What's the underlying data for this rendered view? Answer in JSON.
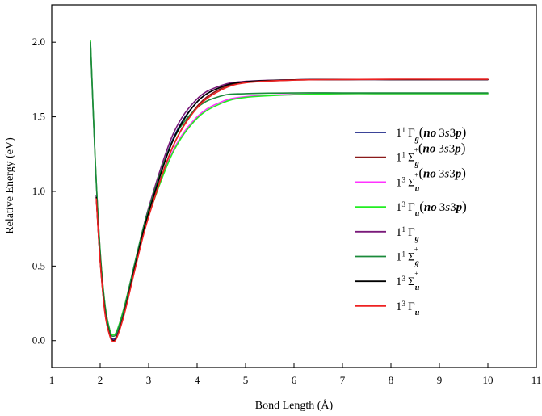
{
  "chart_data": {
    "type": "line",
    "title": "",
    "xlabel": "Bond Length (Å)",
    "ylabel": "Relative Energy (eV)",
    "xlim": [
      1,
      11
    ],
    "ylim": [
      -0.18,
      2.25
    ],
    "xticks": [
      1,
      2,
      3,
      4,
      5,
      6,
      7,
      8,
      9,
      10,
      11
    ],
    "xtick_labels": [
      "1",
      "2",
      "3",
      "4",
      "5",
      "6",
      "7",
      "8",
      "9",
      "10",
      "11"
    ],
    "yticks": [
      0.0,
      0.5,
      1.0,
      1.5,
      2.0
    ],
    "ytick_labels": [
      "0.0",
      "0.5",
      "1.0",
      "1.5",
      "2.0"
    ],
    "grid": false,
    "legend_position": "right",
    "series": [
      {
        "name": "1¹Γg(no 3s3p)",
        "label_base": "1",
        "label_mult": "1",
        "label_sym": "Γ",
        "label_sub": "g",
        "label_sup": "",
        "label_suffix": "(no 3s3p)",
        "color": "#1f2a8a",
        "x": [
          1.92,
          2.0,
          2.1,
          2.2,
          2.27,
          2.35,
          2.5,
          2.75,
          3.0,
          3.5,
          4.0,
          4.5,
          5.0,
          6.0,
          7.0,
          8.0,
          9.0,
          10.0
        ],
        "y": [
          0.97,
          0.55,
          0.2,
          0.045,
          0.01,
          0.04,
          0.2,
          0.55,
          0.87,
          1.35,
          1.6,
          1.7,
          1.735,
          1.748,
          1.75,
          1.75,
          1.75,
          1.75
        ]
      },
      {
        "name": "1¹Σg⁺(no 3s3p)",
        "label_base": "1",
        "label_mult": "1",
        "label_sym": "Σ",
        "label_sub": "g",
        "label_sup": "+",
        "label_suffix": "(no 3s3p)",
        "color": "#8b1a1a",
        "x": [
          1.92,
          2.0,
          2.1,
          2.2,
          2.27,
          2.35,
          2.5,
          2.75,
          3.0,
          3.5,
          4.0,
          4.5,
          5.0,
          6.0,
          7.0,
          8.0,
          9.0,
          10.0
        ],
        "y": [
          0.96,
          0.54,
          0.19,
          0.035,
          0.0,
          0.03,
          0.19,
          0.53,
          0.84,
          1.3,
          1.57,
          1.69,
          1.73,
          1.746,
          1.75,
          1.75,
          1.75,
          1.75
        ]
      },
      {
        "name": "1³Σu⁺(no 3s3p)",
        "label_base": "1",
        "label_mult": "3",
        "label_sym": "Σ",
        "label_sub": "u",
        "label_sup": "+",
        "label_suffix": "(no 3s3p)",
        "color": "#ff33ff",
        "x": [
          1.8,
          1.9,
          2.0,
          2.1,
          2.2,
          2.27,
          2.35,
          2.5,
          2.75,
          3.0,
          3.5,
          4.0,
          4.5,
          5.0,
          6.0,
          7.0,
          8.0,
          9.0,
          10.0
        ],
        "y": [
          2.0,
          1.2,
          0.6,
          0.24,
          0.07,
          0.04,
          0.07,
          0.23,
          0.56,
          0.84,
          1.27,
          1.5,
          1.6,
          1.635,
          1.65,
          1.655,
          1.655,
          1.655,
          1.655
        ]
      },
      {
        "name": "1³Γu(no 3s3p)",
        "label_base": "1",
        "label_mult": "3",
        "label_sym": "Γ",
        "label_sub": "u",
        "label_sup": "",
        "label_suffix": "(no 3s3p)",
        "color": "#22ee22",
        "x": [
          1.8,
          1.9,
          2.0,
          2.1,
          2.2,
          2.27,
          2.35,
          2.5,
          2.75,
          3.0,
          3.5,
          4.0,
          4.5,
          5.0,
          6.0,
          7.0,
          8.0,
          9.0,
          10.0
        ],
        "y": [
          2.01,
          1.2,
          0.6,
          0.24,
          0.07,
          0.04,
          0.07,
          0.23,
          0.56,
          0.84,
          1.26,
          1.49,
          1.59,
          1.63,
          1.648,
          1.655,
          1.655,
          1.655,
          1.655
        ]
      },
      {
        "name": "1¹Γg",
        "label_base": "1",
        "label_mult": "1",
        "label_sym": "Γ",
        "label_sub": "g",
        "label_sup": "",
        "label_suffix": "",
        "color": "#7a1a7a",
        "x": [
          1.92,
          2.0,
          2.1,
          2.2,
          2.27,
          2.35,
          2.5,
          2.75,
          3.0,
          3.5,
          4.0,
          4.5,
          5.0,
          6.0,
          7.0,
          8.0,
          9.0,
          10.0
        ],
        "y": [
          0.97,
          0.55,
          0.2,
          0.04,
          0.005,
          0.035,
          0.2,
          0.56,
          0.89,
          1.38,
          1.62,
          1.71,
          1.738,
          1.748,
          1.75,
          1.75,
          1.75,
          1.75
        ]
      },
      {
        "name": "1¹Σg⁺",
        "label_base": "1",
        "label_mult": "1",
        "label_sym": "Σ",
        "label_sub": "g",
        "label_sup": "+",
        "label_suffix": "",
        "color": "#1a8a3a",
        "x": [
          1.8,
          1.9,
          2.0,
          2.1,
          2.2,
          2.27,
          2.35,
          2.5,
          2.75,
          3.0,
          3.5,
          4.0,
          4.5,
          5.0,
          6.0,
          7.0,
          8.0,
          9.0,
          10.0
        ],
        "y": [
          2.0,
          1.19,
          0.59,
          0.23,
          0.06,
          0.03,
          0.06,
          0.22,
          0.57,
          0.88,
          1.34,
          1.56,
          1.64,
          1.655,
          1.66,
          1.66,
          1.66,
          1.66,
          1.66
        ]
      },
      {
        "name": "1³Σu⁺",
        "label_base": "1",
        "label_mult": "3",
        "label_sym": "Σ",
        "label_sub": "u",
        "label_sup": "+",
        "label_suffix": "",
        "color": "#000000",
        "x": [
          1.92,
          2.0,
          2.1,
          2.2,
          2.27,
          2.35,
          2.5,
          2.75,
          3.0,
          3.5,
          4.0,
          4.5,
          5.0,
          6.0,
          7.0,
          8.0,
          9.0,
          10.0
        ],
        "y": [
          0.96,
          0.54,
          0.19,
          0.035,
          0.0,
          0.03,
          0.19,
          0.54,
          0.86,
          1.34,
          1.6,
          1.7,
          1.735,
          1.748,
          1.75,
          1.75,
          1.75,
          1.75
        ]
      },
      {
        "name": "1³Γu",
        "label_base": "1",
        "label_mult": "3",
        "label_sym": "Γ",
        "label_sub": "u",
        "label_sup": "",
        "label_suffix": "",
        "color": "#ee2222",
        "x": [
          1.92,
          2.0,
          2.1,
          2.2,
          2.27,
          2.35,
          2.5,
          2.75,
          3.0,
          3.5,
          4.0,
          4.5,
          5.0,
          6.0,
          7.0,
          8.0,
          9.0,
          10.0
        ],
        "y": [
          0.95,
          0.53,
          0.18,
          0.03,
          -0.005,
          0.025,
          0.18,
          0.52,
          0.83,
          1.3,
          1.56,
          1.68,
          1.728,
          1.746,
          1.75,
          1.752,
          1.752,
          1.752
        ]
      }
    ]
  }
}
